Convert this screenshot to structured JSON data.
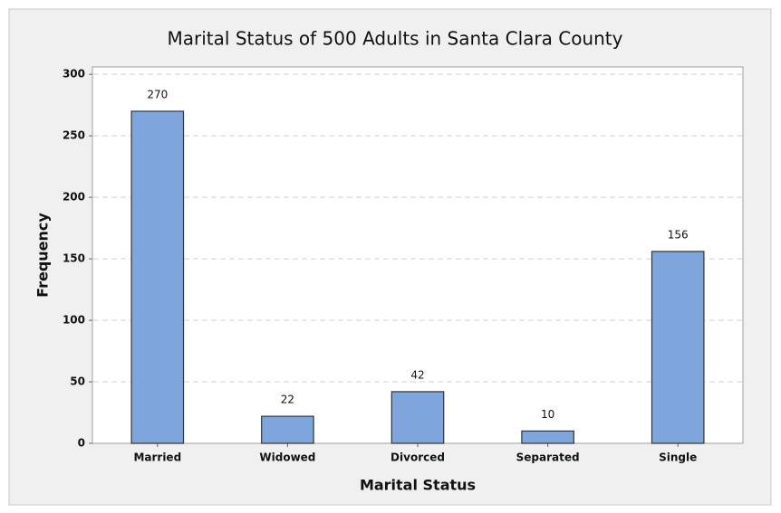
{
  "chart_data": {
    "type": "bar",
    "title": "Marital Status of 500 Adults in Santa Clara County",
    "x_label": "Marital Status",
    "y_label": "Frequency",
    "categories": [
      "Married",
      "Widowed",
      "Divorced",
      "Separated",
      "Single"
    ],
    "values": [
      270,
      22,
      42,
      10,
      156
    ],
    "color": "#7ea6dc",
    "ylim": [
      0,
      306
    ],
    "yticks": [
      0,
      50,
      100,
      150,
      200,
      250,
      300
    ],
    "grid": true
  }
}
